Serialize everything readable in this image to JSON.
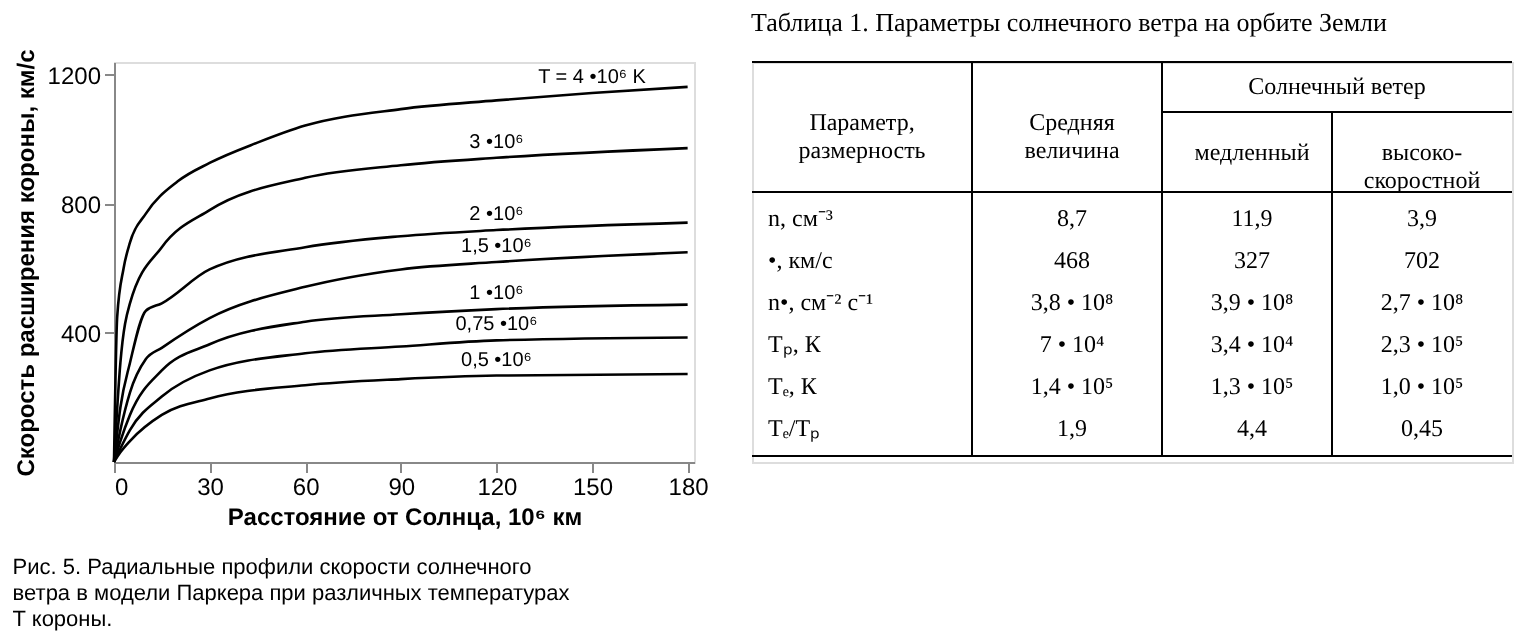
{
  "chart_data": [
    {
      "type": "line",
      "xlabel": "Расстояние от Солнца, 10⁶ км",
      "ylabel": "Скорость расширения короны, км/с",
      "annotations": [
        "Рис. 5. Радиальные профили скорости солнечного ветра в модели Паркера при различных температурах T короны."
      ],
      "xlim": [
        0,
        182
      ],
      "xticks": [
        0,
        30,
        60,
        90,
        120,
        150,
        180
      ],
      "ylim": [
        0,
        1240
      ],
      "yticks": [
        400,
        800,
        1200
      ],
      "grid": false,
      "legend": false,
      "marker": "none",
      "line_style": "solid",
      "series": [
        {
          "name": "T = 4 •10⁶ K",
          "color": "#000000",
          "x": [
            0,
            1,
            3,
            5,
            10,
            20,
            30,
            45,
            60,
            90,
            120,
            150,
            180
          ],
          "values": [
            0,
            450,
            600,
            680,
            770,
            870,
            927,
            990,
            1043,
            1094,
            1121,
            1144,
            1163
          ]
        },
        {
          "name": "3 •10⁶",
          "color": "#000000",
          "x": [
            0,
            2,
            5,
            15,
            30,
            60,
            90,
            120,
            180
          ],
          "values": [
            0,
            307,
            492,
            666,
            781,
            881,
            920,
            943,
            973
          ]
        },
        {
          "name": "2 •10⁶",
          "color": "#000000",
          "x": [
            0,
            2,
            5,
            10,
            15,
            30,
            60,
            90,
            120,
            180
          ],
          "values": [
            0,
            169,
            307,
            469,
            492,
            597,
            666,
            700,
            719,
            742
          ]
        },
        {
          "name": "1,5 •10⁶",
          "color": "#000000",
          "x": [
            0,
            2,
            5,
            10,
            15,
            30,
            60,
            90,
            120,
            180
          ],
          "values": [
            0,
            99,
            215,
            319,
            354,
            446,
            543,
            597,
            620,
            650
          ]
        },
        {
          "name": "1 •10⁶",
          "color": "#000000",
          "x": [
            0,
            2,
            5,
            15,
            30,
            60,
            90,
            120,
            180
          ],
          "values": [
            0,
            65,
            146,
            284,
            365,
            435,
            458,
            474,
            488
          ]
        },
        {
          "name": "0,75 •10⁶",
          "color": "#000000",
          "x": [
            0,
            2,
            5,
            15,
            30,
            60,
            90,
            120,
            180
          ],
          "values": [
            0,
            42,
            99,
            203,
            284,
            337,
            358,
            377,
            386
          ]
        },
        {
          "name": "0,5 •10⁶",
          "color": "#000000",
          "x": [
            0,
            2,
            5,
            15,
            30,
            60,
            90,
            120,
            180
          ],
          "values": [
            0,
            30,
            65,
            146,
            197,
            238,
            257,
            268,
            273
          ]
        }
      ]
    },
    {
      "type": "other",
      "title": "Таблица 1. Параметры солнечного ветра на орбите Земли",
      "annotations": [
        "Параметр,\nразмерность",
        "Средняя\nвеличина",
        "Солнечный ветер",
        "медленный",
        "высоко-\nскоростной",
        "n, см⁻³",
        "8,7",
        "11,9",
        "3,9",
        "•, км/с",
        "468",
        "327",
        "702",
        "n•, см⁻² с⁻¹",
        "3,8 • 10⁸",
        "3,9 • 10⁸",
        "2,7 • 10⁸",
        "Tₚ, К",
        "7 • 10⁴",
        "3,4 • 10⁴",
        "2,3 • 10⁵",
        "Tₑ, К",
        "1,4 • 10⁵",
        "1,3 • 10⁵",
        "1,0 • 10⁵",
        "Tₑ/Tₚ",
        "1,9",
        "4,4",
        "0,45"
      ]
    }
  ]
}
